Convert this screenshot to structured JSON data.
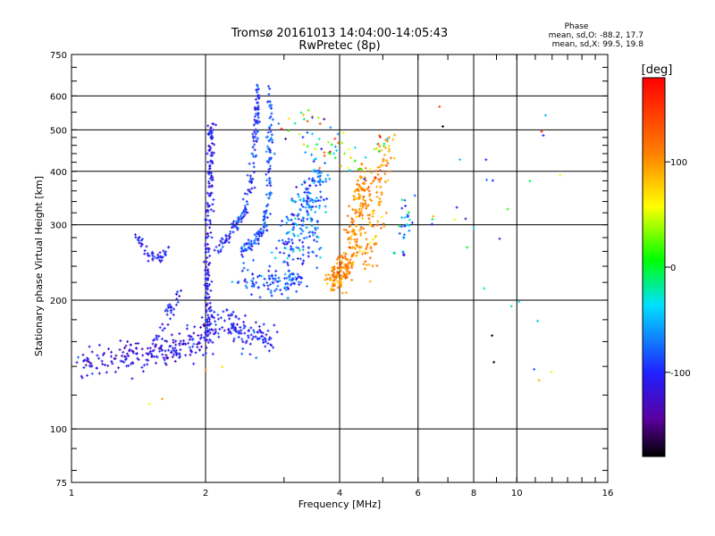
{
  "chart_data": {
    "type": "scatter",
    "title": "Tromsø 20161013 14:04:00-14:05:43",
    "subtitle": "RwPretec (8p)",
    "xlabel": "Frequency [MHz]",
    "ylabel": "Stationary phase Virtual Height [km]",
    "x_scale": "log",
    "y_scale": "log",
    "xlim": [
      1,
      16
    ],
    "ylim": [
      75,
      750
    ],
    "x_ticks": [
      {
        "value": 1,
        "label": "1"
      },
      {
        "value": 2,
        "label": "2"
      },
      {
        "value": 4,
        "label": "4"
      },
      {
        "value": 6,
        "label": "6"
      },
      {
        "value": 8,
        "label": "8"
      },
      {
        "value": 10,
        "label": "10"
      },
      {
        "value": 16,
        "label": "16"
      }
    ],
    "y_ticks": [
      {
        "value": 75,
        "label": "75"
      },
      {
        "value": 100,
        "label": "100"
      },
      {
        "value": 200,
        "label": "200"
      },
      {
        "value": 300,
        "label": "300"
      },
      {
        "value": 400,
        "label": "400"
      },
      {
        "value": 500,
        "label": "500"
      },
      {
        "value": 600,
        "label": "600"
      },
      {
        "value": 750,
        "label": "750"
      }
    ],
    "grid": true,
    "stats": {
      "heading": "Phase",
      "line_o": "mean, sd,O: -88.2, 17.7",
      "line_x": "mean, sd,X:  99.5, 19.8"
    },
    "colorbar": {
      "label": "[deg]",
      "min": -180,
      "max": 180,
      "ticks": [
        {
          "value": 100,
          "label": "100"
        },
        {
          "value": 0,
          "label": "0"
        },
        {
          "value": -100,
          "label": "-100"
        }
      ]
    },
    "clusters": [
      {
        "name": "low-o-trace",
        "points": [
          [
            1.05,
            142
          ],
          [
            1.1,
            141
          ],
          [
            1.25,
            145
          ],
          [
            1.35,
            150
          ],
          [
            1.45,
            148
          ],
          [
            1.55,
            150
          ],
          [
            1.65,
            152
          ],
          [
            1.75,
            155
          ],
          [
            1.85,
            158
          ],
          [
            1.95,
            160
          ],
          [
            2.0,
            165
          ]
        ],
        "spread": 0.04,
        "count": 220,
        "phase": -115,
        "phase_sd": 15
      },
      {
        "name": "small-arc",
        "points": [
          [
            1.4,
            285
          ],
          [
            1.45,
            265
          ],
          [
            1.5,
            255
          ],
          [
            1.55,
            252
          ],
          [
            1.6,
            252
          ],
          [
            1.65,
            262
          ]
        ],
        "spread": 0.015,
        "count": 45,
        "phase": -105,
        "phase_sd": 12
      },
      {
        "name": "left-ascent",
        "points": [
          [
            1.55,
            162
          ],
          [
            1.65,
            185
          ],
          [
            1.75,
            210
          ]
        ],
        "spread": 0.02,
        "count": 35,
        "phase": -105,
        "phase_sd": 15
      },
      {
        "name": "vertical-2mhz",
        "points": [
          [
            2.03,
            165
          ],
          [
            2.02,
            200
          ],
          [
            2.02,
            250
          ],
          [
            2.03,
            300
          ],
          [
            2.05,
            380
          ],
          [
            2.06,
            450
          ],
          [
            2.06,
            520
          ]
        ],
        "spread": 0.015,
        "count": 180,
        "phase": -110,
        "phase_sd": 12
      },
      {
        "name": "band-2-3mhz-lower",
        "points": [
          [
            2.0,
            170
          ],
          [
            2.2,
            180
          ],
          [
            2.4,
            170
          ],
          [
            2.6,
            160
          ],
          [
            2.8,
            165
          ]
        ],
        "spread": 0.04,
        "count": 130,
        "phase": -100,
        "phase_sd": 15
      },
      {
        "name": "curve-2.5mhz",
        "points": [
          [
            2.1,
            260
          ],
          [
            2.3,
            290
          ],
          [
            2.45,
            320
          ],
          [
            2.55,
            400
          ],
          [
            2.6,
            500
          ],
          [
            2.62,
            630
          ]
        ],
        "spread": 0.015,
        "count": 160,
        "phase": -95,
        "phase_sd": 18
      },
      {
        "name": "curve-2.7mhz",
        "points": [
          [
            2.4,
            260
          ],
          [
            2.6,
            275
          ],
          [
            2.72,
            300
          ],
          [
            2.78,
            380
          ],
          [
            2.8,
            480
          ],
          [
            2.8,
            620
          ]
        ],
        "spread": 0.015,
        "count": 150,
        "phase": -85,
        "phase_sd": 20
      },
      {
        "name": "band-230",
        "points": [
          [
            2.4,
            225
          ],
          [
            2.7,
            222
          ],
          [
            3.0,
            220
          ],
          [
            3.3,
            222
          ]
        ],
        "spread": 0.035,
        "count": 110,
        "phase": -85,
        "phase_sd": 18
      },
      {
        "name": "mid-region",
        "points": [
          [
            3.0,
            250
          ],
          [
            3.2,
            300
          ],
          [
            3.4,
            350
          ],
          [
            3.6,
            400
          ],
          [
            3.4,
            260
          ]
        ],
        "spread": 0.06,
        "count": 230,
        "phase": -75,
        "phase_sd": 25
      },
      {
        "name": "x-trace-3.8-4.2",
        "points": [
          [
            3.8,
            220
          ],
          [
            4.0,
            230
          ],
          [
            4.2,
            250
          ],
          [
            4.4,
            300
          ],
          [
            4.5,
            360
          ],
          [
            4.6,
            400
          ]
        ],
        "spread": 0.04,
        "count": 280,
        "phase": 105,
        "phase_sd": 15
      },
      {
        "name": "x-right-4.5-5",
        "points": [
          [
            4.6,
            230
          ],
          [
            4.8,
            300
          ],
          [
            5.0,
            400
          ],
          [
            5.2,
            470
          ]
        ],
        "spread": 0.04,
        "count": 90,
        "phase": 100,
        "phase_sd": 20
      },
      {
        "name": "upper-scatter",
        "points": [
          [
            3.0,
            520
          ],
          [
            3.5,
            500
          ],
          [
            4.0,
            450
          ],
          [
            4.5,
            420
          ],
          [
            5.0,
            480
          ]
        ],
        "spread": 0.07,
        "count": 70,
        "phase": 20,
        "phase_sd": 90
      },
      {
        "name": "right-column-5.5",
        "points": [
          [
            5.5,
            250
          ],
          [
            5.6,
            300
          ],
          [
            5.7,
            350
          ]
        ],
        "spread": 0.03,
        "count": 30,
        "phase": -70,
        "phase_sd": 40
      },
      {
        "name": "sparse-right",
        "points": [
          [
            6.5,
            300
          ],
          [
            7.2,
            350
          ],
          [
            7.8,
            270
          ],
          [
            8.5,
            400
          ],
          [
            9.2,
            300
          ],
          [
            9.3,
            210
          ],
          [
            10.5,
            170
          ],
          [
            10.8,
            130
          ],
          [
            12.0,
            120
          ],
          [
            11.0,
            600
          ],
          [
            13.0,
            380
          ],
          [
            6.8,
            520
          ],
          [
            7.9,
            480
          ],
          [
            9.0,
            130
          ]
        ],
        "spread": 0.05,
        "count": 30,
        "phase": 0,
        "phase_sd": 110
      },
      {
        "name": "isolated",
        "points": [
          [
            1.25,
            108
          ],
          [
            1.65,
            120
          ],
          [
            3.4,
            185
          ]
        ],
        "spread": 0.01,
        "count": 4,
        "phase": 90,
        "phase_sd": 20
      }
    ]
  }
}
